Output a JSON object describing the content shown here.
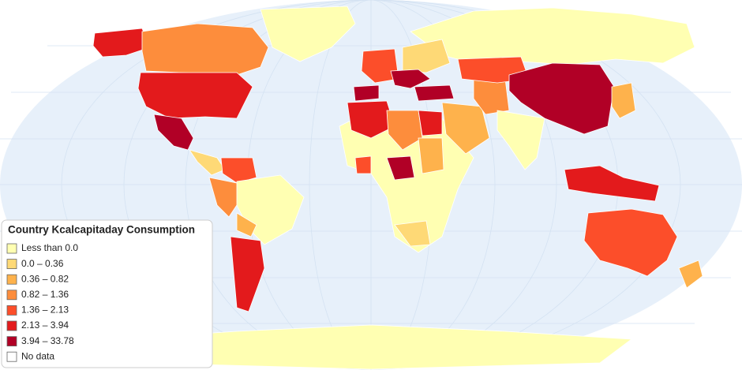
{
  "legend": {
    "title": "Country Kcalcapitaday Consumption",
    "items": [
      {
        "label": "Less than 0.0",
        "color": "#ffffb2"
      },
      {
        "label": "0.0 – 0.36",
        "color": "#fed976"
      },
      {
        "label": "0.36 – 0.82",
        "color": "#feb24c"
      },
      {
        "label": "0.82 – 1.36",
        "color": "#fd8d3c"
      },
      {
        "label": "1.36 – 2.13",
        "color": "#fc4e2a"
      },
      {
        "label": "2.13 – 3.94",
        "color": "#e31a1c"
      },
      {
        "label": "3.94 – 33.78",
        "color": "#b10026"
      },
      {
        "label": "No data",
        "color": "#ffffff"
      }
    ]
  }
}
